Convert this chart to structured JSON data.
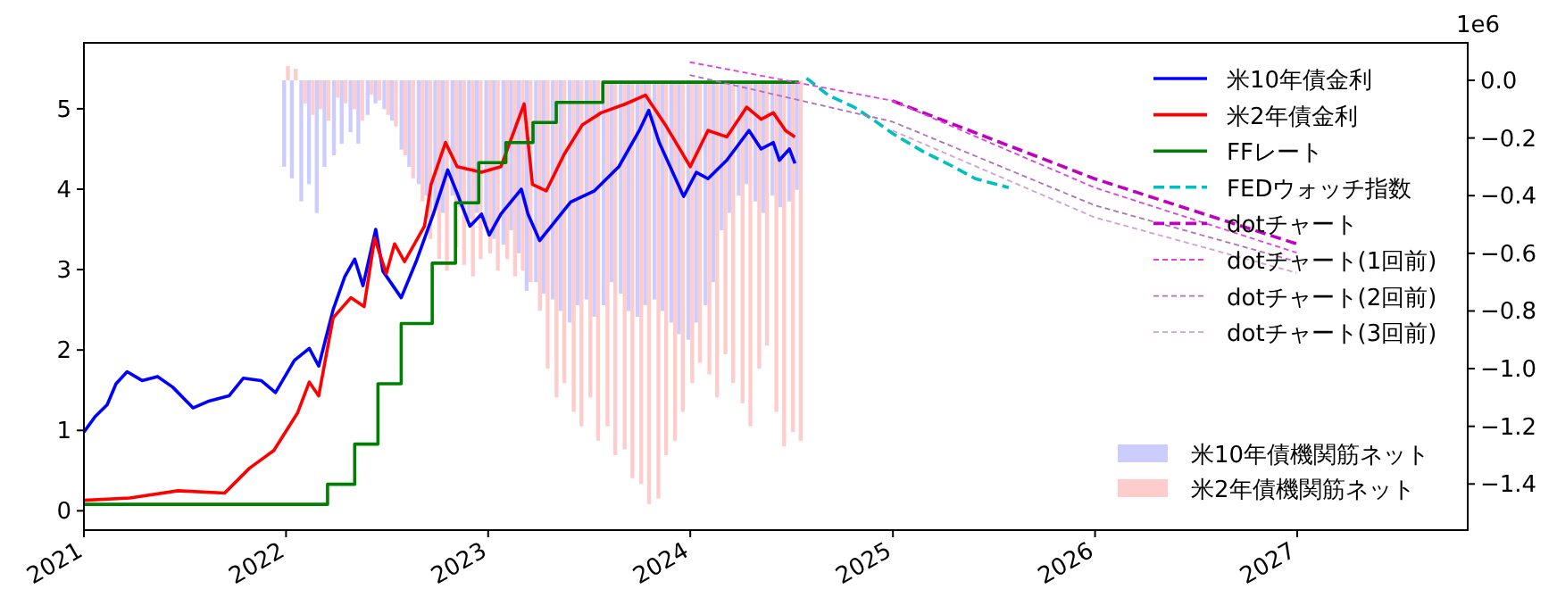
{
  "chart_data": {
    "type": "line",
    "xlim": [
      "2021-01-01",
      "2027-11-05"
    ],
    "xticks": [
      {
        "value": "2021-01-01",
        "label": "2021"
      },
      {
        "value": "2022-01-01",
        "label": "2022"
      },
      {
        "value": "2023-01-01",
        "label": "2023"
      },
      {
        "value": "2024-01-01",
        "label": "2024"
      },
      {
        "value": "2025-01-01",
        "label": "2025"
      },
      {
        "value": "2026-01-01",
        "label": "2026"
      },
      {
        "value": "2027-01-01",
        "label": "2027"
      }
    ],
    "ylim": [
      -0.24,
      5.82
    ],
    "yticks": [
      0,
      1,
      2,
      3,
      4,
      5
    ],
    "y2lim": [
      -1.56,
      0.13
    ],
    "y2ticks": [
      {
        "value": -1.4,
        "label": "−1.4"
      },
      {
        "value": -1.2,
        "label": "−1.2"
      },
      {
        "value": -1.0,
        "label": "−1.0"
      },
      {
        "value": -0.8,
        "label": "−0.8"
      },
      {
        "value": -0.6,
        "label": "−0.6"
      },
      {
        "value": -0.4,
        "label": "−0.4"
      },
      {
        "value": -0.2,
        "label": "−0.2"
      },
      {
        "value": 0,
        "label": "0.0"
      }
    ],
    "annotations": [
      "1e6"
    ],
    "legend": "top right",
    "grid": false,
    "series": [
      {
        "name": "米10年債金利",
        "color": "#0000ff",
        "line_style": "solid",
        "x": [
          "2021-01-01",
          "2021-01-21",
          "2021-02-12",
          "2021-02-28",
          "2021-03-20",
          "2021-04-16",
          "2021-05-14",
          "2021-06-10",
          "2021-07-17",
          "2021-08-13",
          "2021-09-20",
          "2021-10-16",
          "2021-11-17",
          "2021-12-13",
          "2022-01-16",
          "2022-02-12",
          "2022-03-01",
          "2022-03-27",
          "2022-04-17",
          "2022-05-05",
          "2022-05-20",
          "2022-06-12",
          "2022-06-25",
          "2022-07-28",
          "2022-08-24",
          "2022-09-24",
          "2022-10-20",
          "2022-11-06",
          "2022-11-29",
          "2022-12-20",
          "2023-01-03",
          "2023-01-24",
          "2023-03-02",
          "2023-03-14",
          "2023-04-04",
          "2023-05-30",
          "2023-07-12",
          "2023-08-25",
          "2023-10-01",
          "2023-10-18",
          "2023-11-06",
          "2023-12-20",
          "2024-01-12",
          "2024-02-02",
          "2024-03-07",
          "2024-04-16",
          "2024-05-08",
          "2024-05-30",
          "2024-06-10",
          "2024-06-28",
          "2024-07-08"
        ],
        "values": [
          0.98,
          1.17,
          1.32,
          1.58,
          1.73,
          1.62,
          1.67,
          1.54,
          1.28,
          1.36,
          1.43,
          1.65,
          1.62,
          1.47,
          1.87,
          2.02,
          1.8,
          2.5,
          2.91,
          3.13,
          2.8,
          3.5,
          2.98,
          2.65,
          3.1,
          3.69,
          4.24,
          3.95,
          3.54,
          3.69,
          3.43,
          3.69,
          4.0,
          3.69,
          3.36,
          3.84,
          3.98,
          4.28,
          4.73,
          4.98,
          4.58,
          3.91,
          4.21,
          4.13,
          4.36,
          4.73,
          4.5,
          4.58,
          4.36,
          4.5,
          4.32
        ]
      },
      {
        "name": "米2年債金利",
        "color": "#ff0000",
        "line_style": "solid",
        "x": [
          "2021-01-01",
          "2021-03-25",
          "2021-06-20",
          "2021-09-12",
          "2021-10-27",
          "2021-12-10",
          "2022-01-22",
          "2022-02-12",
          "2022-03-01",
          "2022-03-27",
          "2022-04-28",
          "2022-05-22",
          "2022-06-10",
          "2022-07-01",
          "2022-07-16",
          "2022-08-03",
          "2022-09-08",
          "2022-09-20",
          "2022-10-16",
          "2022-11-06",
          "2022-12-20",
          "2023-01-24",
          "2023-03-07",
          "2023-03-22",
          "2023-04-16",
          "2023-05-18",
          "2023-06-20",
          "2023-07-24",
          "2023-09-06",
          "2023-10-12",
          "2023-11-17",
          "2024-01-01",
          "2024-02-02",
          "2024-03-07",
          "2024-04-12",
          "2024-05-08",
          "2024-05-30",
          "2024-06-21",
          "2024-07-08"
        ],
        "values": [
          0.13,
          0.16,
          0.25,
          0.22,
          0.53,
          0.75,
          1.22,
          1.6,
          1.43,
          2.4,
          2.65,
          2.54,
          3.39,
          2.95,
          3.32,
          3.1,
          3.54,
          4.06,
          4.58,
          4.28,
          4.21,
          4.28,
          5.06,
          4.06,
          3.98,
          4.43,
          4.8,
          4.95,
          5.06,
          5.17,
          4.8,
          4.28,
          4.73,
          4.65,
          5.02,
          4.87,
          4.95,
          4.73,
          4.65
        ]
      },
      {
        "name": "FFレート",
        "type": "step",
        "color": "#008000",
        "line_style": "solid",
        "x": [
          "2021-01-01",
          "2022-03-17",
          "2022-05-05",
          "2022-06-16",
          "2022-07-28",
          "2022-09-22",
          "2022-11-03",
          "2022-12-15",
          "2023-02-02",
          "2023-03-23",
          "2023-05-04",
          "2023-07-27",
          "2024-07-15"
        ],
        "values": [
          0.08,
          0.33,
          0.83,
          1.58,
          2.33,
          3.08,
          3.83,
          4.33,
          4.58,
          4.83,
          5.08,
          5.33,
          5.33
        ]
      },
      {
        "name": "FEDウォッチ指数",
        "type": "line",
        "color": "#00bfbf",
        "line_style": "dashed",
        "x": [
          "2024-07-29",
          "2024-09-06",
          "2024-10-23",
          "2024-11-25",
          "2025-01-01",
          "2025-02-24",
          "2025-04-20",
          "2025-05-30",
          "2025-07-29"
        ],
        "values": [
          5.38,
          5.17,
          5.02,
          4.87,
          4.69,
          4.47,
          4.28,
          4.13,
          4.02
        ]
      },
      {
        "name": "dotチャート",
        "type": "line",
        "color": "#bf00bf",
        "line_style": "dashed",
        "x": [
          "2024-12-31",
          "2025-12-31",
          "2026-12-31"
        ],
        "values": [
          5.1,
          4.13,
          3.32
        ]
      },
      {
        "name": "dotチャート(1回前)",
        "type": "line",
        "color": "#e040e0",
        "line_style": "dotted",
        "x": [
          "2023-12-31",
          "2024-12-31",
          "2025-12-31",
          "2026-12-31"
        ],
        "values": [
          5.58,
          5.1,
          4.02,
          3.21
        ]
      },
      {
        "name": "dotチャート(2回前)",
        "type": "line",
        "color": "#b070b8",
        "line_style": "dotted",
        "x": [
          "2023-12-31",
          "2024-12-31",
          "2025-12-31",
          "2026-12-31"
        ],
        "values": [
          5.42,
          4.84,
          3.8,
          3.1
        ]
      },
      {
        "name": "dotチャート(3回前)",
        "type": "line",
        "color": "#d0a0d0",
        "line_style": "dotted",
        "x": [
          "2024-12-31",
          "2025-12-31",
          "2026-12-31"
        ],
        "values": [
          4.73,
          3.65,
          2.96
        ]
      },
      {
        "name": "米10年債機関筋ネット",
        "type": "bar",
        "axis": "y2",
        "color": "#ccccff",
        "x": [
          "2022-01-01",
          "2022-01-15",
          "2022-02-01",
          "2022-02-15",
          "2022-03-01",
          "2022-03-15",
          "2022-04-01",
          "2022-04-15",
          "2022-05-01",
          "2022-05-15",
          "2022-06-01",
          "2022-06-15",
          "2022-07-01",
          "2022-07-15",
          "2022-08-01",
          "2022-08-15",
          "2022-09-01",
          "2022-09-15",
          "2022-10-01",
          "2022-10-15",
          "2022-11-01",
          "2022-11-15",
          "2022-12-01",
          "2022-12-15",
          "2023-01-01",
          "2023-01-15",
          "2023-02-01",
          "2023-02-15",
          "2023-03-01",
          "2023-03-15",
          "2023-04-01",
          "2023-04-15",
          "2023-05-01",
          "2023-05-15",
          "2023-06-01",
          "2023-06-15",
          "2023-07-01",
          "2023-07-15",
          "2023-08-01",
          "2023-08-15",
          "2023-09-01",
          "2023-09-15",
          "2023-10-01",
          "2023-10-15",
          "2023-11-01",
          "2023-11-15",
          "2023-12-01",
          "2023-12-15",
          "2024-01-01",
          "2024-01-15",
          "2024-02-01",
          "2024-02-15",
          "2024-03-01",
          "2024-03-15",
          "2024-04-01",
          "2024-04-15",
          "2024-05-01",
          "2024-05-15",
          "2024-06-01",
          "2024-06-15",
          "2024-07-01",
          "2024-07-15"
        ],
        "values": [
          -0.3,
          -0.34,
          -0.42,
          -0.36,
          -0.46,
          -0.3,
          -0.26,
          -0.22,
          -0.18,
          -0.22,
          -0.12,
          -0.08,
          -0.1,
          -0.14,
          -0.24,
          -0.3,
          -0.36,
          -0.4,
          -0.44,
          -0.46,
          -0.4,
          -0.44,
          -0.48,
          -0.46,
          -0.5,
          -0.55,
          -0.57,
          -0.52,
          -0.6,
          -0.73,
          -0.7,
          -0.74,
          -0.76,
          -0.8,
          -0.84,
          -0.78,
          -0.76,
          -0.82,
          -0.78,
          -0.7,
          -0.74,
          -0.8,
          -0.82,
          -0.78,
          -0.76,
          -0.8,
          -0.84,
          -0.88,
          -0.9,
          -0.84,
          -0.78,
          -0.7,
          -0.52,
          -0.46,
          -0.4,
          -0.36,
          -0.42,
          -0.46,
          -0.4,
          -0.44,
          -0.42,
          -0.38
        ]
      },
      {
        "name": "米2年債機関筋ネット",
        "type": "bar",
        "axis": "y2",
        "color": "#ffcccc",
        "x": [
          "2022-01-01",
          "2022-01-15",
          "2022-02-01",
          "2022-02-15",
          "2022-03-01",
          "2022-03-15",
          "2022-04-01",
          "2022-04-15",
          "2022-05-01",
          "2022-05-15",
          "2022-06-01",
          "2022-06-15",
          "2022-07-01",
          "2022-07-15",
          "2022-08-01",
          "2022-08-15",
          "2022-09-01",
          "2022-09-15",
          "2022-10-01",
          "2022-10-15",
          "2022-11-01",
          "2022-11-15",
          "2022-12-01",
          "2022-12-15",
          "2023-01-01",
          "2023-01-15",
          "2023-02-01",
          "2023-02-15",
          "2023-03-01",
          "2023-03-15",
          "2023-04-01",
          "2023-04-15",
          "2023-05-01",
          "2023-05-15",
          "2023-06-01",
          "2023-06-15",
          "2023-07-01",
          "2023-07-15",
          "2023-08-01",
          "2023-08-15",
          "2023-09-01",
          "2023-09-15",
          "2023-10-01",
          "2023-10-15",
          "2023-11-01",
          "2023-11-15",
          "2023-12-01",
          "2023-12-15",
          "2024-01-01",
          "2024-01-15",
          "2024-02-01",
          "2024-02-15",
          "2024-03-01",
          "2024-03-15",
          "2024-04-01",
          "2024-04-15",
          "2024-05-01",
          "2024-05-15",
          "2024-06-01",
          "2024-06-15",
          "2024-07-01",
          "2024-07-15"
        ],
        "values": [
          0.05,
          0.04,
          -0.08,
          -0.12,
          -0.1,
          -0.14,
          -0.06,
          -0.08,
          -0.1,
          -0.14,
          -0.05,
          -0.07,
          -0.12,
          -0.16,
          -0.26,
          -0.34,
          -0.42,
          -0.55,
          -0.62,
          -0.66,
          -0.58,
          -0.64,
          -0.68,
          -0.62,
          -0.6,
          -0.66,
          -0.62,
          -0.68,
          -0.66,
          -0.7,
          -0.8,
          -1.0,
          -1.1,
          -1.05,
          -1.15,
          -1.2,
          -1.1,
          -1.25,
          -1.2,
          -1.3,
          -1.28,
          -1.38,
          -1.4,
          -1.47,
          -1.45,
          -1.3,
          -1.25,
          -1.15,
          -1.05,
          -0.98,
          -1.02,
          -1.1,
          -0.95,
          -1.05,
          -1.12,
          -1.2,
          -1.0,
          -0.92,
          -1.15,
          -1.27,
          -1.22,
          -1.25
        ]
      }
    ]
  }
}
